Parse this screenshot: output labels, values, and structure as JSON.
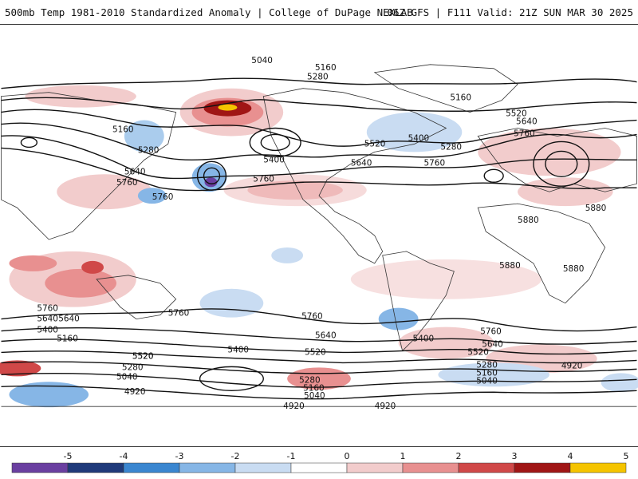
{
  "header": {
    "left_title": "500mb Temp 1981-2010 Standardized Anomaly | College of DuPage NEXLAB",
    "right_title": "06Z GFS | F111 Valid: 21Z SUN MAR 30 2025"
  },
  "colorbar": {
    "ticks": [
      "-5",
      "-4",
      "-3",
      "-2",
      "-1",
      "0",
      "1",
      "2",
      "3",
      "4",
      "5"
    ],
    "colors": [
      "#6a3fa0",
      "#1f3a7a",
      "#3a86d0",
      "#86b6e6",
      "#c9dcf2",
      "#ffffff",
      "#f2cccc",
      "#e89090",
      "#d04848",
      "#a01515",
      "#f5c400"
    ]
  },
  "contour_labels": [
    {
      "text": "5040"
    },
    {
      "text": "5160"
    },
    {
      "text": "5280"
    },
    {
      "text": "5160"
    },
    {
      "text": "5160"
    },
    {
      "text": "5280"
    },
    {
      "text": "5400"
    },
    {
      "text": "5640"
    },
    {
      "text": "5760"
    },
    {
      "text": "5760"
    },
    {
      "text": "5520"
    },
    {
      "text": "5400"
    },
    {
      "text": "5640"
    },
    {
      "text": "5280"
    },
    {
      "text": "5760"
    },
    {
      "text": "5520"
    },
    {
      "text": "5640"
    },
    {
      "text": "5760"
    },
    {
      "text": "5880"
    },
    {
      "text": "5880"
    },
    {
      "text": "5880"
    },
    {
      "text": "5880"
    },
    {
      "text": "5760"
    },
    {
      "text": "5640"
    },
    {
      "text": "5400"
    },
    {
      "text": "5160"
    },
    {
      "text": "5760"
    },
    {
      "text": "5760"
    },
    {
      "text": "5640"
    },
    {
      "text": "5400"
    },
    {
      "text": "5520"
    },
    {
      "text": "5520"
    },
    {
      "text": "5280"
    },
    {
      "text": "5040"
    },
    {
      "text": "4920"
    },
    {
      "text": "5280"
    },
    {
      "text": "5160"
    },
    {
      "text": "5040"
    },
    {
      "text": "4920"
    },
    {
      "text": "4920"
    },
    {
      "text": "5400"
    },
    {
      "text": "5760"
    },
    {
      "text": "5640"
    },
    {
      "text": "5520"
    },
    {
      "text": "5280"
    },
    {
      "text": "5160"
    },
    {
      "text": "5040"
    },
    {
      "text": "4920"
    },
    {
      "text": "5520"
    },
    {
      "text": "5640"
    },
    {
      "text": "5760"
    }
  ]
}
